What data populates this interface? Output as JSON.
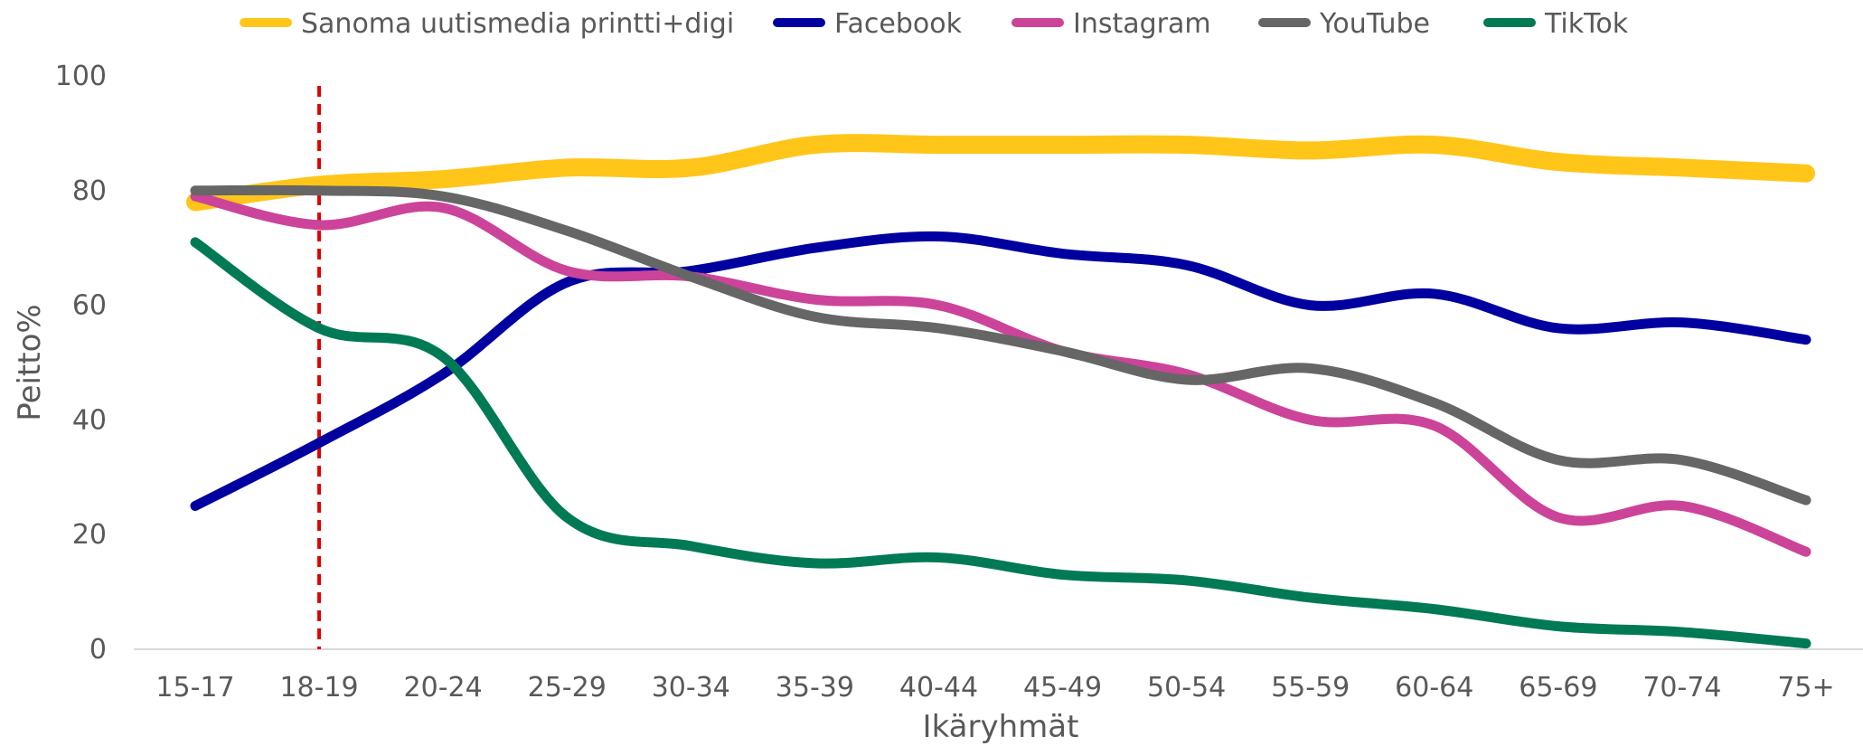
{
  "chart_data": {
    "type": "line",
    "title": "",
    "xlabel": "Ikäryhmät",
    "ylabel": "Peitto%",
    "ylim": [
      0,
      100
    ],
    "yticks": [
      0,
      20,
      40,
      60,
      80,
      100
    ],
    "grid": false,
    "legend_position": "top",
    "categories": [
      "15-17",
      "18-19",
      "20-24",
      "25-29",
      "30-34",
      "35-39",
      "40-44",
      "45-49",
      "50-54",
      "55-59",
      "60-64",
      "65-69",
      "70-74",
      "75+"
    ],
    "marker_category": "18-19",
    "marker_color": "#e00000",
    "series": [
      {
        "name": "Sanoma uutismedia printti+digi",
        "color": "#ffc619",
        "values": [
          78,
          81,
          82,
          84,
          84,
          88,
          88,
          88,
          88,
          87,
          88,
          85,
          84,
          83
        ]
      },
      {
        "name": "Facebook",
        "color": "#0000a0",
        "values": [
          25,
          36,
          48,
          64,
          66,
          70,
          72,
          69,
          67,
          60,
          62,
          56,
          57,
          54
        ]
      },
      {
        "name": "Instagram",
        "color": "#cc4499",
        "values": [
          79,
          74,
          77,
          66,
          65,
          61,
          60,
          52,
          48,
          40,
          39,
          23,
          25,
          17
        ]
      },
      {
        "name": "YouTube",
        "color": "#666666",
        "values": [
          80,
          80,
          79,
          73,
          65,
          58,
          56,
          52,
          47,
          49,
          43,
          33,
          33,
          26
        ]
      },
      {
        "name": "TikTok",
        "color": "#007a55",
        "values": [
          71,
          56,
          51,
          23,
          18,
          15,
          16,
          13,
          12,
          9,
          7,
          4,
          3,
          1
        ]
      }
    ]
  }
}
